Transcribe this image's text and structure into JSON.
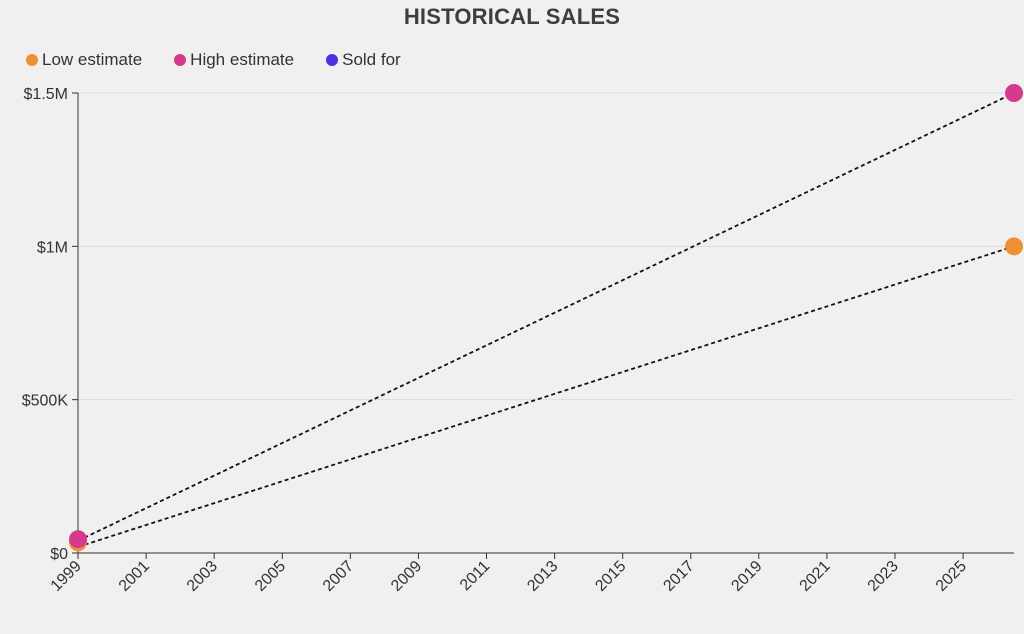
{
  "chart_data": {
    "type": "scatter",
    "title": "HISTORICAL SALES",
    "xlabel": "",
    "ylabel": "",
    "x_ticks": [
      "1999",
      "2001",
      "2003",
      "2005",
      "2007",
      "2009",
      "2011",
      "2013",
      "2015",
      "2017",
      "2019",
      "2021",
      "2023",
      "2025"
    ],
    "y_ticks": [
      "$0",
      "$500K",
      "$1M",
      "$1.5M"
    ],
    "y_tick_values": [
      0,
      500000,
      1000000,
      1500000
    ],
    "xlim": [
      "1999-01-01",
      "2026-07-01"
    ],
    "ylim": [
      0,
      1500000
    ],
    "grid": "horizontal",
    "legend_position": "top-left",
    "series": [
      {
        "name": "Low estimate",
        "color": "#ec9235",
        "points": [
          {
            "x": "1999-01-01",
            "y": 35000
          },
          {
            "x": "2026-07-01",
            "y": 1000000
          }
        ]
      },
      {
        "name": "High estimate",
        "color": "#d63a8e",
        "points": [
          {
            "x": "1999-01-01",
            "y": 45000
          },
          {
            "x": "2026-07-01",
            "y": 1500000
          }
        ]
      },
      {
        "name": "Sold for",
        "color": "#4b32e0",
        "points": []
      }
    ],
    "trend_lines": [
      {
        "from": {
          "x": "1999-01-01",
          "y": 20000
        },
        "to": {
          "x": "2026-07-01",
          "y": 1000000
        },
        "style": "dashed"
      },
      {
        "from": {
          "x": "1999-01-01",
          "y": 40000
        },
        "to": {
          "x": "2026-07-01",
          "y": 1500000
        },
        "style": "dashed"
      }
    ]
  }
}
